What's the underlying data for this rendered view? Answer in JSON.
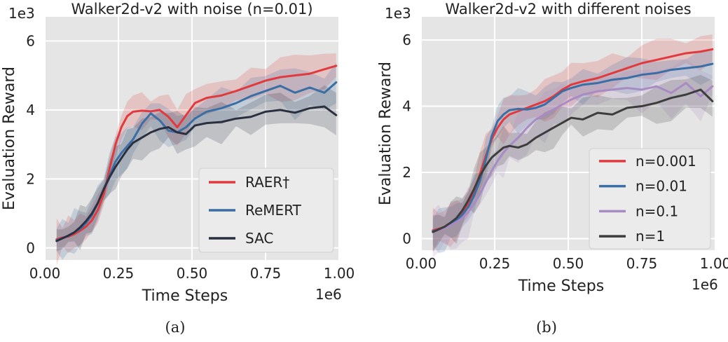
{
  "chart_data": [
    {
      "type": "line",
      "title": "Walker2d-v2 with noise (n=0.01)",
      "xlabel": "Time Steps",
      "ylabel": "Evaluation Reward",
      "x_multiplier": "1e6",
      "y_multiplier": "1e3",
      "xlim": [
        0.0,
        1.0
      ],
      "ylim": [
        -0.35,
        6.7
      ],
      "xticks": [
        0.0,
        0.25,
        0.5,
        0.75,
        1.0
      ],
      "xtick_labels": [
        "0.00",
        "0.25",
        "0.50",
        "0.75",
        "1.00"
      ],
      "yticks": [
        0,
        2,
        4,
        6
      ],
      "ytick_labels": [
        "0",
        "2",
        "4",
        "6"
      ],
      "legend": "bottom-right",
      "caption": "(a)",
      "x": [
        0.04,
        0.06,
        0.08,
        0.1,
        0.12,
        0.14,
        0.16,
        0.18,
        0.2,
        0.22,
        0.24,
        0.26,
        0.28,
        0.3,
        0.33,
        0.36,
        0.39,
        0.42,
        0.45,
        0.48,
        0.51,
        0.55,
        0.6,
        0.65,
        0.7,
        0.75,
        0.8,
        0.85,
        0.9,
        0.95,
        0.99
      ],
      "series": [
        {
          "name": "RAER†",
          "color": "#e03a3e",
          "band": 0.45,
          "values": [
            0.25,
            0.3,
            0.33,
            0.4,
            0.5,
            0.62,
            0.8,
            1.1,
            1.55,
            2.3,
            3.0,
            3.5,
            3.82,
            3.95,
            3.98,
            3.96,
            4.0,
            3.8,
            3.5,
            3.85,
            4.2,
            4.35,
            4.42,
            4.55,
            4.7,
            4.85,
            4.95,
            5.0,
            5.05,
            5.18,
            5.28
          ]
        },
        {
          "name": "ReMERT",
          "color": "#3a6ea5",
          "band": 0.5,
          "values": [
            0.22,
            0.28,
            0.35,
            0.45,
            0.55,
            0.72,
            0.95,
            1.3,
            1.7,
            2.1,
            2.5,
            2.75,
            2.95,
            3.15,
            3.6,
            3.9,
            3.7,
            3.4,
            3.35,
            3.5,
            3.75,
            3.95,
            4.05,
            4.2,
            4.4,
            4.55,
            4.7,
            4.5,
            4.65,
            4.5,
            4.8
          ]
        },
        {
          "name": "SAC",
          "color": "#2b3040",
          "band": 0.45,
          "values": [
            0.2,
            0.28,
            0.36,
            0.45,
            0.6,
            0.78,
            1.0,
            1.3,
            1.7,
            2.05,
            2.35,
            2.6,
            2.85,
            3.05,
            3.2,
            3.35,
            3.45,
            3.5,
            3.35,
            3.3,
            3.55,
            3.62,
            3.65,
            3.75,
            3.8,
            3.95,
            4.0,
            3.92,
            4.05,
            4.1,
            3.85
          ]
        }
      ]
    },
    {
      "type": "line",
      "title": "Walker2d-v2 with different noises",
      "xlabel": "Time Steps",
      "ylabel": "Evaluation Reward",
      "x_multiplier": "1e6",
      "y_multiplier": "1e3",
      "xlim": [
        0.0,
        1.0
      ],
      "ylim": [
        -0.35,
        6.7
      ],
      "xticks": [
        0.0,
        0.25,
        0.5,
        0.75,
        1.0
      ],
      "xtick_labels": [
        "0.00",
        "0.25",
        "0.50",
        "0.75",
        "1.00"
      ],
      "yticks": [
        0,
        2,
        4,
        6
      ],
      "ytick_labels": [
        "0",
        "2",
        "4",
        "6"
      ],
      "legend": "bottom-right",
      "caption": "(b)",
      "x": [
        0.04,
        0.06,
        0.08,
        0.1,
        0.12,
        0.14,
        0.16,
        0.18,
        0.2,
        0.22,
        0.24,
        0.26,
        0.28,
        0.3,
        0.33,
        0.36,
        0.39,
        0.42,
        0.45,
        0.48,
        0.51,
        0.55,
        0.6,
        0.65,
        0.7,
        0.75,
        0.8,
        0.85,
        0.9,
        0.95,
        0.99
      ],
      "series": [
        {
          "name": "n=0.001",
          "color": "#e03a3e",
          "band": 0.5,
          "values": [
            0.25,
            0.3,
            0.35,
            0.42,
            0.55,
            0.75,
            1.05,
            1.45,
            1.95,
            2.5,
            3.0,
            3.35,
            3.6,
            3.75,
            3.85,
            3.95,
            4.05,
            4.15,
            4.3,
            4.5,
            4.65,
            4.75,
            4.85,
            5.0,
            5.15,
            5.3,
            5.4,
            5.5,
            5.6,
            5.65,
            5.72
          ]
        },
        {
          "name": "n=0.01",
          "color": "#3a6ea5",
          "band": 0.45,
          "values": [
            0.22,
            0.28,
            0.35,
            0.45,
            0.55,
            0.72,
            0.95,
            1.3,
            1.75,
            2.4,
            3.1,
            3.55,
            3.75,
            3.88,
            3.92,
            3.9,
            3.95,
            4.05,
            4.25,
            4.45,
            4.55,
            4.65,
            4.7,
            4.8,
            4.85,
            4.95,
            5.0,
            5.1,
            5.15,
            5.2,
            5.28
          ]
        },
        {
          "name": "n=0.1",
          "color": "#a98bc4",
          "band": 0.55,
          "values": [
            0.2,
            0.25,
            0.32,
            0.4,
            0.5,
            0.62,
            0.8,
            1.05,
            1.35,
            1.7,
            2.05,
            2.35,
            2.6,
            2.8,
            3.05,
            3.35,
            3.6,
            3.75,
            3.9,
            4.05,
            4.2,
            4.35,
            4.45,
            4.5,
            4.55,
            4.5,
            4.6,
            4.4,
            4.7,
            4.3,
            4.6
          ]
        },
        {
          "name": "n=1",
          "color": "#3d3d3d",
          "band": 0.5,
          "values": [
            0.2,
            0.28,
            0.36,
            0.48,
            0.62,
            0.85,
            1.15,
            1.5,
            1.9,
            2.2,
            2.45,
            2.6,
            2.75,
            2.8,
            2.75,
            2.85,
            3.05,
            3.2,
            3.35,
            3.5,
            3.65,
            3.6,
            3.8,
            3.75,
            3.95,
            4.0,
            4.1,
            4.25,
            4.35,
            4.5,
            4.15
          ]
        }
      ]
    }
  ]
}
